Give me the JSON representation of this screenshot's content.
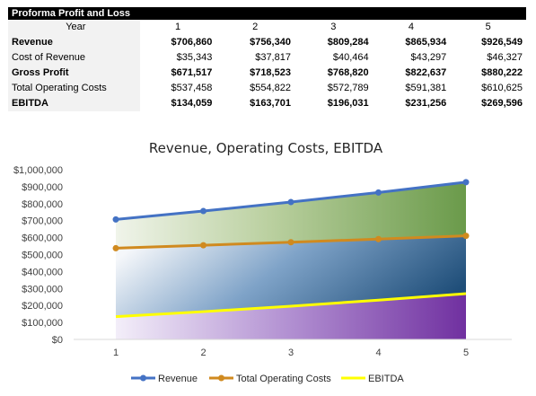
{
  "table": {
    "title": "Proforma Profit and Loss",
    "header_label": "Year",
    "years": [
      "1",
      "2",
      "3",
      "4",
      "5"
    ],
    "rows": [
      {
        "label": "Revenue",
        "bold": true,
        "values": [
          "$706,860",
          "$756,340",
          "$809,284",
          "$865,934",
          "$926,549"
        ]
      },
      {
        "label": "Cost of Revenue",
        "bold": false,
        "values": [
          "$35,343",
          "$37,817",
          "$40,464",
          "$43,297",
          "$46,327"
        ]
      },
      {
        "label": "Gross Profit",
        "bold": true,
        "values": [
          "$671,517",
          "$718,523",
          "$768,820",
          "$822,637",
          "$880,222"
        ]
      },
      {
        "label": "Total Operating Costs",
        "bold": false,
        "values": [
          "$537,458",
          "$554,822",
          "$572,789",
          "$591,381",
          "$610,625"
        ]
      },
      {
        "label": "EBITDA",
        "bold": true,
        "values": [
          "$134,059",
          "$163,701",
          "$196,031",
          "$231,256",
          "$269,596"
        ]
      }
    ]
  },
  "chart_data": {
    "type": "area",
    "title": "Revenue, Operating Costs, EBITDA",
    "x": [
      1,
      2,
      3,
      4,
      5
    ],
    "ylim": [
      0,
      1000000
    ],
    "yticks": [
      0,
      100000,
      200000,
      300000,
      400000,
      500000,
      600000,
      700000,
      800000,
      900000,
      1000000
    ],
    "ytick_labels": [
      "$0",
      "$100,000",
      "$200,000",
      "$300,000",
      "$400,000",
      "$500,000",
      "$600,000",
      "$700,000",
      "$800,000",
      "$900,000",
      "$1,000,000"
    ],
    "grid": false,
    "legend_position": "bottom",
    "series": [
      {
        "name": "Revenue",
        "values": [
          706860,
          756340,
          809284,
          865934,
          926549
        ],
        "color": "#4472c4",
        "markers": true
      },
      {
        "name": "Total Operating Costs",
        "values": [
          537458,
          554822,
          572789,
          591381,
          610625
        ],
        "color": "#d08a1f",
        "markers": true
      },
      {
        "name": "EBITDA",
        "values": [
          134059,
          163701,
          196031,
          231256,
          269596
        ],
        "color": "#ffff00",
        "markers": false
      }
    ]
  }
}
